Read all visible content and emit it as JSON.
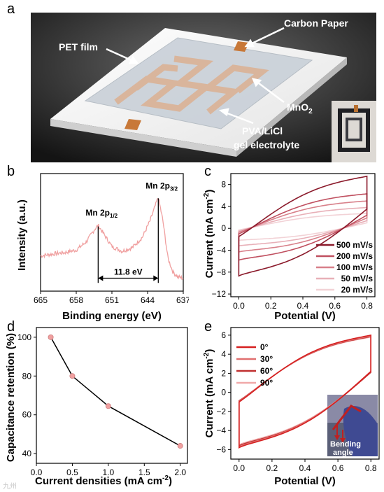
{
  "panels": {
    "a": "a",
    "b": "b",
    "c": "c",
    "d": "d",
    "e": "e"
  },
  "panel_a": {
    "labels": {
      "carbon_paper": "Carbon Paper",
      "pet_film": "PET film",
      "mno2_main": "MnO",
      "mno2_sub": "2",
      "electrolyte_1": "PVA/LiCl",
      "electrolyte_2": "gel electrolyte"
    }
  },
  "panel_e_inset": {
    "label_1": "Bending",
    "label_2": "angle"
  },
  "watermark": "九州",
  "colors": {
    "xps_line": "#f0a0a0",
    "cv_500": "#8b1a2b",
    "cv_200": "#c05060",
    "cv_100": "#d8808a",
    "cv_50": "#e8b0b8",
    "cv_20": "#f2d2d6",
    "point_fill": "#f0a0a0",
    "bend_0": "#d62020",
    "bend_30": "#e07070",
    "bend_60": "#c03030",
    "bend_90": "#f0a8a8"
  },
  "chart_data": [
    {
      "id": "b",
      "type": "line",
      "xlabel": "Binding energy (eV)",
      "ylabel": "Intensity (a.u.)",
      "x_reversed": true,
      "xlim": [
        665,
        637
      ],
      "xticks": [
        665,
        658,
        651,
        644,
        637
      ],
      "peaks": [
        {
          "label_main": "Mn 2p",
          "label_sub": "1/2",
          "x": 653.7
        },
        {
          "label_main": "Mn 2p",
          "label_sub": "3/2",
          "x": 641.9
        }
      ],
      "annotation": "11.8 eV",
      "series": [
        {
          "x": [
            665,
            662,
            660,
            658,
            656,
            654.5,
            653.7,
            652.5,
            651,
            649,
            647,
            645,
            643.5,
            641.9,
            641,
            640,
            639,
            638,
            637
          ],
          "y": [
            0.3,
            0.32,
            0.33,
            0.35,
            0.42,
            0.52,
            0.56,
            0.48,
            0.38,
            0.34,
            0.37,
            0.46,
            0.6,
            0.8,
            0.6,
            0.28,
            0.16,
            0.12,
            0.11
          ]
        }
      ]
    },
    {
      "id": "c",
      "type": "line",
      "xlabel": "Potential (V)",
      "ylabel_main": "Current (mA cm",
      "ylabel_sup": "-2",
      "ylabel_end": ")",
      "xlim": [
        -0.05,
        0.85
      ],
      "ylim": [
        -12.5,
        10
      ],
      "xticks": [
        0.0,
        0.2,
        0.4,
        0.6,
        0.8
      ],
      "yticks": [
        -12,
        -8,
        -4,
        0,
        4,
        8
      ],
      "legend_position": "bottom-right",
      "series": [
        {
          "name": "500 mV/s",
          "upper_start": -1.5,
          "upper_end": 9.5,
          "lower_start": -8.7,
          "lower_end": 3.5,
          "bulge": 2.6
        },
        {
          "name": "200 mV/s",
          "upper_start": -1.0,
          "upper_end": 6.3,
          "lower_start": -5.8,
          "lower_end": 2.4,
          "bulge": 1.9
        },
        {
          "name": "100 mV/s",
          "upper_start": -0.7,
          "upper_end": 5.0,
          "lower_start": -4.3,
          "lower_end": 1.9,
          "bulge": 1.5
        },
        {
          "name": "50 mV/s",
          "upper_start": -0.5,
          "upper_end": 3.8,
          "lower_start": -3.2,
          "lower_end": 1.4,
          "bulge": 1.1
        },
        {
          "name": "20 mV/s",
          "upper_start": -0.3,
          "upper_end": 2.7,
          "lower_start": -2.2,
          "lower_end": 1.0,
          "bulge": 0.8
        }
      ]
    },
    {
      "id": "d",
      "type": "scatter",
      "xlabel_main": "Current densities (mA cm",
      "xlabel_sup": "-2",
      "xlabel_end": ")",
      "ylabel": "Capacitance retention (%)",
      "xlim": [
        0.0,
        2.1
      ],
      "ylim": [
        35,
        105
      ],
      "xticks": [
        0.0,
        0.5,
        1.0,
        1.5,
        2.0
      ],
      "yticks": [
        40,
        60,
        80,
        100
      ],
      "x": [
        0.2,
        0.5,
        1.0,
        2.0
      ],
      "y": [
        100,
        80,
        64.5,
        44
      ]
    },
    {
      "id": "e",
      "type": "line",
      "xlabel": "Potential (V)",
      "ylabel_main": "Current (mA cm",
      "ylabel_sup": "-2",
      "ylabel_end": ")",
      "xlim": [
        -0.05,
        0.85
      ],
      "ylim": [
        -7,
        6.8
      ],
      "xticks": [
        0.0,
        0.2,
        0.4,
        0.6,
        0.8
      ],
      "yticks": [
        -6,
        -4,
        -2,
        0,
        2,
        4,
        6
      ],
      "legend_position": "top-left",
      "series": [
        {
          "name": "0°",
          "upper_start": -1.0,
          "upper_end": 6.0,
          "lower_start": -5.8,
          "lower_end": 2.2,
          "bulge": 1.7
        },
        {
          "name": "30°",
          "upper_start": -0.95,
          "upper_end": 5.9,
          "lower_start": -5.7,
          "lower_end": 2.2,
          "bulge": 1.68
        },
        {
          "name": "60°",
          "upper_start": -0.9,
          "upper_end": 5.85,
          "lower_start": -5.6,
          "lower_end": 2.1,
          "bulge": 1.65
        },
        {
          "name": "90°",
          "upper_start": -0.85,
          "upper_end": 5.8,
          "lower_start": -5.5,
          "lower_end": 2.1,
          "bulge": 1.62
        }
      ]
    }
  ]
}
